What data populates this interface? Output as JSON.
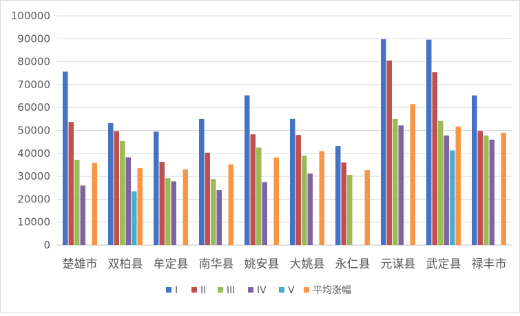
{
  "chart_data": {
    "type": "bar",
    "title": "",
    "xlabel": "",
    "ylabel": "",
    "ylim": [
      0,
      100000
    ],
    "yticks": [
      "0",
      "10000",
      "20000",
      "30000",
      "40000",
      "50000",
      "60000",
      "70000",
      "80000",
      "90000",
      "100000"
    ],
    "grid": true,
    "legend_position": "bottom",
    "categories": [
      "楚雄市",
      "双柏县",
      "牟定县",
      "南华县",
      "姚安县",
      "大姚县",
      "永仁县",
      "元谋县",
      "武定县",
      "禄丰市"
    ],
    "series": [
      {
        "name": "I",
        "color": "#4472c4",
        "values": [
          75700,
          53200,
          49500,
          55000,
          65300,
          55000,
          43200,
          89800,
          89600,
          65300
        ]
      },
      {
        "name": "II",
        "color": "#c0504d",
        "values": [
          53700,
          49700,
          36300,
          40300,
          48300,
          48000,
          36000,
          80500,
          75400,
          49800
        ]
      },
      {
        "name": "III",
        "color": "#9bbb59",
        "values": [
          37200,
          45400,
          29200,
          28800,
          42500,
          39000,
          30600,
          55000,
          54200,
          47800
        ]
      },
      {
        "name": "IV",
        "color": "#8064a2",
        "values": [
          26000,
          38300,
          27800,
          24000,
          27500,
          31200,
          null,
          52200,
          47800,
          46000
        ]
      },
      {
        "name": "V",
        "color": "#4bacc6",
        "values": [
          null,
          23400,
          null,
          null,
          null,
          null,
          null,
          null,
          41300,
          null
        ]
      },
      {
        "name": "平均涨幅",
        "color": "#f79646",
        "values": [
          35800,
          33600,
          33000,
          35200,
          38200,
          41000,
          32700,
          61500,
          51700,
          49000
        ]
      }
    ]
  }
}
